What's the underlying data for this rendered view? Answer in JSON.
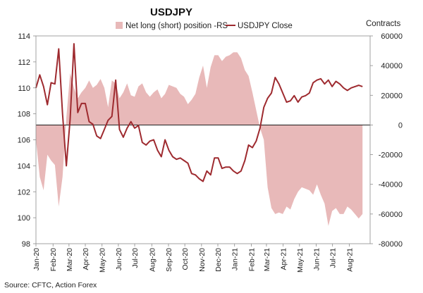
{
  "chart_data": {
    "type": "area+line",
    "title": "USDJPY",
    "subtitle_right": "Contracts",
    "source": "Source: CFTC, Action Forex",
    "colors": {
      "area": "#e8b9b9",
      "line": "#9e2a2f",
      "zero_line": "#000000"
    },
    "legend": [
      {
        "name": "Net long (short) position -RS",
        "marker": "area"
      },
      {
        "name": "USDJPY Close",
        "marker": "line"
      }
    ],
    "left_axis": {
      "min": 98,
      "max": 114,
      "ticks": [
        98,
        100,
        102,
        104,
        106,
        108,
        110,
        112,
        114
      ]
    },
    "right_axis": {
      "min": -80000,
      "max": 60000,
      "ticks": [
        -80000,
        -60000,
        -40000,
        -20000,
        0,
        20000,
        40000,
        60000
      ]
    },
    "x_range": [
      0,
      88
    ],
    "x_ticks": [
      {
        "label": "Jan-20",
        "week": 0
      },
      {
        "label": "Feb-20",
        "week": 4.5
      },
      {
        "label": "Mar-20",
        "week": 8.7
      },
      {
        "label": "Apr-20",
        "week": 13
      },
      {
        "label": "May-20",
        "week": 17.4
      },
      {
        "label": "Jun-20",
        "week": 21.7
      },
      {
        "label": "Jul-20",
        "week": 26
      },
      {
        "label": "Aug-20",
        "week": 30.5
      },
      {
        "label": "Sep-20",
        "week": 34.9
      },
      {
        "label": "Oct-20",
        "week": 39.2
      },
      {
        "label": "Nov-20",
        "week": 43.6
      },
      {
        "label": "Dec-20",
        "week": 47.9
      },
      {
        "label": "Jan-21",
        "week": 52.3
      },
      {
        "label": "Feb-21",
        "week": 56.7
      },
      {
        "label": "Mar-21",
        "week": 60.7
      },
      {
        "label": "Apr-21",
        "week": 65.1
      },
      {
        "label": "May-21",
        "week": 69.4
      },
      {
        "label": "Jun-21",
        "week": 73.8
      },
      {
        "label": "Jul-21",
        "week": 78.1
      },
      {
        "label": "Aug-21",
        "week": 82.5
      }
    ],
    "series": [
      {
        "name": "Net long (short) position -RS",
        "axis": "right",
        "type": "area",
        "points": [
          [
            0,
            -10000
          ],
          [
            1,
            -35000
          ],
          [
            2,
            -44000
          ],
          [
            3,
            -20000
          ],
          [
            4,
            -24000
          ],
          [
            5,
            -27000
          ],
          [
            6,
            -55000
          ],
          [
            7,
            -35000
          ],
          [
            8,
            5000
          ],
          [
            9,
            35000
          ],
          [
            10,
            25000
          ],
          [
            11,
            18000
          ],
          [
            12,
            22000
          ],
          [
            13,
            25000
          ],
          [
            14,
            30000
          ],
          [
            15,
            25000
          ],
          [
            16,
            27000
          ],
          [
            17,
            31000
          ],
          [
            18,
            25000
          ],
          [
            19,
            12000
          ],
          [
            20,
            30000
          ],
          [
            21,
            28000
          ],
          [
            22,
            18000
          ],
          [
            23,
            22000
          ],
          [
            24,
            28000
          ],
          [
            25,
            20000
          ],
          [
            26,
            19000
          ],
          [
            27,
            26000
          ],
          [
            28,
            28000
          ],
          [
            29,
            22000
          ],
          [
            30,
            19000
          ],
          [
            31,
            22000
          ],
          [
            32,
            24000
          ],
          [
            33,
            18000
          ],
          [
            34,
            21000
          ],
          [
            35,
            27000
          ],
          [
            36,
            26000
          ],
          [
            37,
            25000
          ],
          [
            38,
            21000
          ],
          [
            39,
            19000
          ],
          [
            40,
            14000
          ],
          [
            41,
            17000
          ],
          [
            42,
            21000
          ],
          [
            43,
            32000
          ],
          [
            44,
            40000
          ],
          [
            45,
            25000
          ],
          [
            46,
            39000
          ],
          [
            47,
            47000
          ],
          [
            48,
            47000
          ],
          [
            49,
            43000
          ],
          [
            50,
            46000
          ],
          [
            51,
            47000
          ],
          [
            52,
            49000
          ],
          [
            53,
            49000
          ],
          [
            54,
            45000
          ],
          [
            55,
            37000
          ],
          [
            56,
            33000
          ],
          [
            57,
            22000
          ],
          [
            58,
            10000
          ],
          [
            59,
            -2000
          ],
          [
            60,
            -10000
          ],
          [
            61,
            -42000
          ],
          [
            62,
            -56000
          ],
          [
            63,
            -60000
          ],
          [
            64,
            -59000
          ],
          [
            65,
            -60000
          ],
          [
            66,
            -55000
          ],
          [
            67,
            -57000
          ],
          [
            68,
            -50000
          ],
          [
            69,
            -45000
          ],
          [
            70,
            -42000
          ],
          [
            71,
            -43000
          ],
          [
            72,
            -44000
          ],
          [
            73,
            -47000
          ],
          [
            74,
            -40000
          ],
          [
            75,
            -47000
          ],
          [
            76,
            -53000
          ],
          [
            77,
            -68000
          ],
          [
            78,
            -58000
          ],
          [
            79,
            -56000
          ],
          [
            80,
            -60000
          ],
          [
            81,
            -60000
          ],
          [
            82,
            -55000
          ],
          [
            83,
            -57000
          ],
          [
            84,
            -60000
          ],
          [
            85,
            -63000
          ],
          [
            86,
            -60000
          ]
        ]
      },
      {
        "name": "USDJPY Close",
        "axis": "left",
        "type": "line",
        "points": [
          [
            0,
            110.0
          ],
          [
            1,
            111.0
          ],
          [
            2,
            110.1
          ],
          [
            3,
            108.7
          ],
          [
            4,
            110.4
          ],
          [
            5,
            110.3
          ],
          [
            6,
            113.0
          ],
          [
            7,
            108.0
          ],
          [
            8,
            104.0
          ],
          [
            9,
            107.6
          ],
          [
            10,
            113.4
          ],
          [
            11,
            108.1
          ],
          [
            12,
            108.8
          ],
          [
            13,
            108.8
          ],
          [
            14,
            107.4
          ],
          [
            15,
            107.2
          ],
          [
            16,
            106.3
          ],
          [
            17,
            106.1
          ],
          [
            18,
            106.8
          ],
          [
            19,
            107.5
          ],
          [
            20,
            107.8
          ],
          [
            21,
            110.6
          ],
          [
            22,
            106.8
          ],
          [
            23,
            106.2
          ],
          [
            24,
            106.9
          ],
          [
            25,
            107.4
          ],
          [
            26,
            106.9
          ],
          [
            27,
            107.1
          ],
          [
            28,
            105.8
          ],
          [
            29,
            105.6
          ],
          [
            30,
            105.9
          ],
          [
            31,
            106.0
          ],
          [
            32,
            105.2
          ],
          [
            33,
            104.7
          ],
          [
            34,
            106.0
          ],
          [
            35,
            105.2
          ],
          [
            36,
            104.7
          ],
          [
            37,
            104.5
          ],
          [
            38,
            104.6
          ],
          [
            39,
            104.4
          ],
          [
            40,
            104.2
          ],
          [
            41,
            103.4
          ],
          [
            42,
            103.3
          ],
          [
            43,
            103.0
          ],
          [
            44,
            102.8
          ],
          [
            45,
            103.6
          ],
          [
            46,
            103.3
          ],
          [
            47,
            104.6
          ],
          [
            48,
            104.6
          ],
          [
            49,
            103.8
          ],
          [
            50,
            103.9
          ],
          [
            51,
            103.9
          ],
          [
            52,
            103.6
          ],
          [
            53,
            103.4
          ],
          [
            54,
            103.6
          ],
          [
            55,
            104.4
          ],
          [
            56,
            105.6
          ],
          [
            57,
            105.4
          ],
          [
            58,
            105.9
          ],
          [
            59,
            106.9
          ],
          [
            60,
            108.5
          ],
          [
            61,
            109.2
          ],
          [
            62,
            109.6
          ],
          [
            63,
            110.8
          ],
          [
            64,
            110.3
          ],
          [
            65,
            109.6
          ],
          [
            66,
            108.9
          ],
          [
            67,
            109.0
          ],
          [
            68,
            109.4
          ],
          [
            69,
            108.9
          ],
          [
            70,
            109.3
          ],
          [
            71,
            109.4
          ],
          [
            72,
            109.6
          ],
          [
            73,
            110.4
          ],
          [
            74,
            110.6
          ],
          [
            75,
            110.7
          ],
          [
            76,
            110.3
          ],
          [
            77,
            110.6
          ],
          [
            78,
            110.1
          ],
          [
            79,
            110.5
          ],
          [
            80,
            110.3
          ],
          [
            81,
            110.0
          ],
          [
            82,
            109.8
          ],
          [
            83,
            110.0
          ],
          [
            84,
            110.1
          ],
          [
            85,
            110.2
          ],
          [
            86,
            110.1
          ]
        ]
      }
    ]
  }
}
